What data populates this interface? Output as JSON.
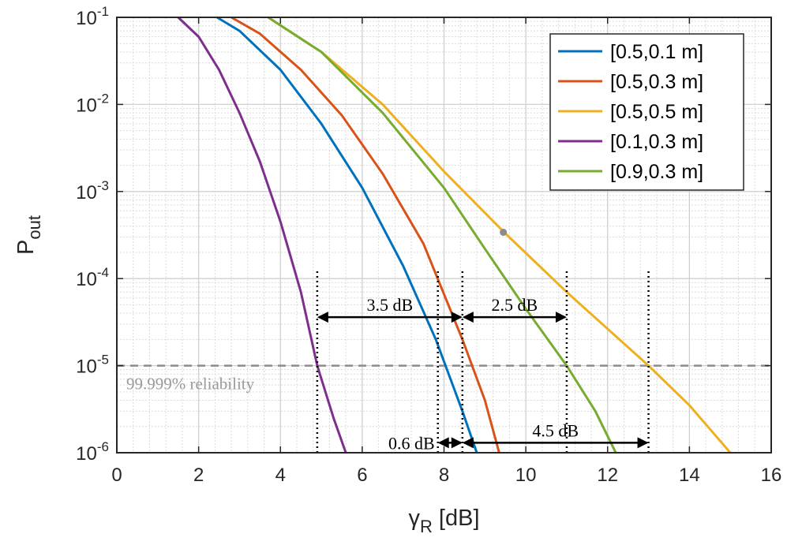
{
  "chart_data": {
    "type": "line",
    "title": "",
    "xlabel": "γR [dB]",
    "ylabel": "Pout",
    "xlim": [
      0,
      16
    ],
    "ylim": [
      1e-06,
      0.1
    ],
    "yscale": "log",
    "grid": true,
    "x_ticks": [
      "0",
      "2",
      "4",
      "6",
      "8",
      "10",
      "12",
      "14",
      "16"
    ],
    "y_ticks": [
      {
        "base": "10",
        "exp": "-6"
      },
      {
        "base": "10",
        "exp": "-5"
      },
      {
        "base": "10",
        "exp": "-4"
      },
      {
        "base": "10",
        "exp": "-3"
      },
      {
        "base": "10",
        "exp": "-2"
      },
      {
        "base": "10",
        "exp": "-1"
      }
    ],
    "legend_position": "top-right",
    "series": [
      {
        "name": "[0.5,0.1 m]",
        "color": "#0072BD",
        "x": [
          2.45,
          3.0,
          4.0,
          5.0,
          6.0,
          7.0,
          7.8,
          8.45,
          8.8
        ],
        "y": [
          0.1,
          0.07,
          0.025,
          0.006,
          0.0011,
          0.00014,
          2e-05,
          3e-06,
          1e-06
        ]
      },
      {
        "name": "[0.5,0.3 m]",
        "color": "#D95319",
        "x": [
          2.8,
          3.5,
          4.5,
          5.5,
          6.5,
          7.5,
          8.45,
          9.0,
          9.35
        ],
        "y": [
          0.1,
          0.065,
          0.025,
          0.0075,
          0.0016,
          0.00025,
          2e-05,
          4e-06,
          1e-06
        ]
      },
      {
        "name": "[0.5,0.5 m]",
        "color": "#EDB120",
        "x": [
          3.7,
          5.0,
          6.5,
          8.0,
          9.5,
          11.0,
          13.0,
          14.0,
          15.0
        ],
        "y": [
          0.1,
          0.04,
          0.01,
          0.0017,
          0.00033,
          7e-05,
          1e-05,
          3.5e-06,
          1e-06
        ]
      },
      {
        "name": "[0.1,0.3 m]",
        "color": "#7E2F8E",
        "x": [
          1.5,
          2.0,
          2.5,
          3.0,
          3.5,
          4.0,
          4.5,
          4.9,
          5.3,
          5.6
        ],
        "y": [
          0.1,
          0.06,
          0.025,
          0.008,
          0.0022,
          0.00045,
          7e-05,
          1e-05,
          2.5e-06,
          1e-06
        ]
      },
      {
        "name": "[0.9,0.3 m]",
        "color": "#77AC30",
        "x": [
          3.7,
          5.0,
          6.5,
          8.0,
          9.0,
          10.0,
          11.0,
          11.7,
          12.2
        ],
        "y": [
          0.1,
          0.04,
          0.008,
          0.0011,
          0.00022,
          4.5e-05,
          1e-05,
          3e-06,
          1e-06
        ]
      }
    ],
    "reference_line": {
      "y": 1e-05,
      "label": "99.999% reliability",
      "color": "#8c8c8c"
    },
    "marker_point": {
      "x": 9.45,
      "y": 0.00034,
      "color": "#8c8c8c"
    },
    "vertical_markers": [
      4.9,
      7.85,
      8.45,
      11.0,
      13.0
    ],
    "annotations": [
      {
        "label": "3.5 dB",
        "x_from": 4.9,
        "x_to": 8.45,
        "y": 3.6e-05
      },
      {
        "label": "2.5 dB",
        "x_from": 8.45,
        "x_to": 11.0,
        "y": 3.6e-05
      },
      {
        "label": "0.6 dB",
        "x_from": 7.85,
        "x_to": 8.45,
        "y": 1.3e-06
      },
      {
        "label": "4.5 dB",
        "x_from": 8.45,
        "x_to": 13.0,
        "y": 1.3e-06
      }
    ]
  }
}
